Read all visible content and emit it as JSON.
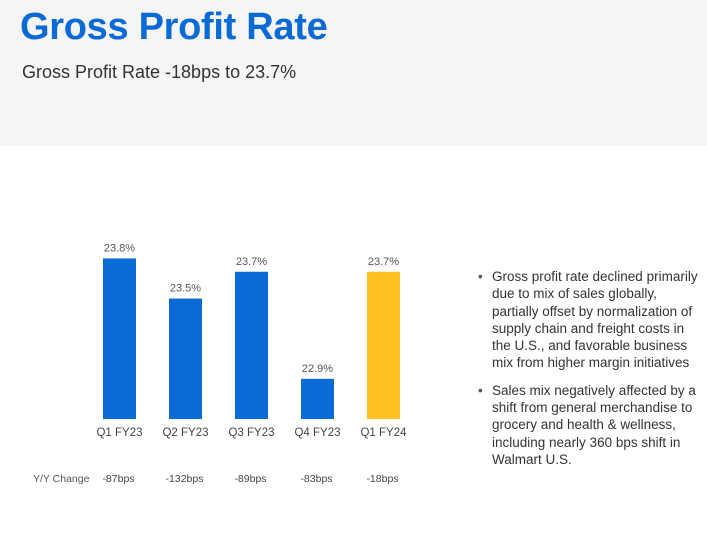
{
  "header": {
    "title": "Gross Profit Rate",
    "subtitle": "Gross Profit Rate -18bps to 23.7%"
  },
  "colors": {
    "title": "#0a6ad6",
    "bar_blue": "#0a6ad6",
    "bar_highlight": "#ffc220",
    "text": "#333333"
  },
  "chart_data": {
    "type": "bar",
    "title": "Gross Profit Rate",
    "categories": [
      "Q1 FY23",
      "Q2 FY23",
      "Q3 FY23",
      "Q4 FY23",
      "Q1 FY24"
    ],
    "values": [
      23.8,
      23.5,
      23.7,
      22.9,
      23.7
    ],
    "value_labels": [
      "23.8%",
      "23.5%",
      "23.7%",
      "22.9%",
      "23.7%"
    ],
    "highlight_index": 4,
    "ylim": [
      22.6,
      23.9
    ],
    "xlabel": "",
    "ylabel": "",
    "grid": false,
    "yoy_label": "Y/Y Change",
    "yoy_values": [
      "-87bps",
      "-132bps",
      "-89bps",
      "-83bps",
      "-18bps"
    ]
  },
  "bullets": [
    "Gross profit rate declined primarily due to mix of sales globally, partially offset by normalization of supply chain and freight costs in the U.S., and favorable business mix from higher margin initiatives",
    "Sales mix negatively affected by a shift from general merchandise to grocery and health & wellness, including nearly 360 bps shift in Walmart U.S."
  ],
  "bullet_glyph": "•"
}
